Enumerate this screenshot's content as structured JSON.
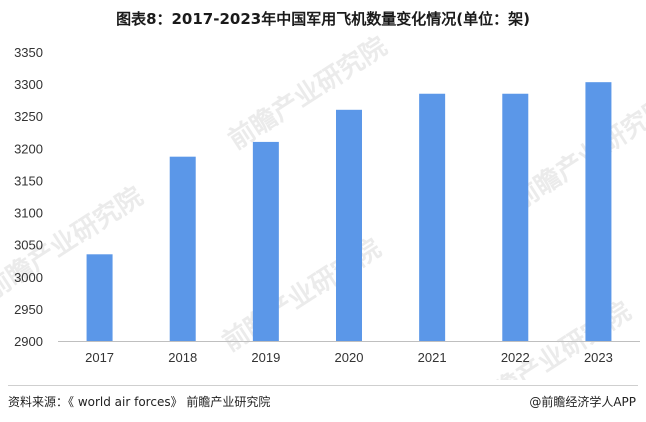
{
  "title": "图表8：2017-2023年中国军用飞机数量变化情况(单位：架)",
  "footer": {
    "source": "资料来源：《 world air forces》 前瞻产业研究院",
    "brand": "@前瞻经济学人APP"
  },
  "watermark": "前瞻产业研究院",
  "colors": {
    "bar": "#5b97e8",
    "axis": "#bfbfbf"
  },
  "chart_data": {
    "type": "bar",
    "title": "图表8：2017-2023年中国军用飞机数量变化情况(单位：架)",
    "categories": [
      "2017",
      "2018",
      "2019",
      "2020",
      "2021",
      "2022",
      "2023"
    ],
    "values": [
      3035,
      3187,
      3210,
      3260,
      3285,
      3285,
      3303
    ],
    "ylim": [
      2900,
      3350
    ],
    "yticks": [
      2900,
      2950,
      3000,
      3050,
      3100,
      3150,
      3200,
      3250,
      3300,
      3350
    ],
    "xlabel": "",
    "ylabel": "",
    "grid": false,
    "legend": "none"
  }
}
